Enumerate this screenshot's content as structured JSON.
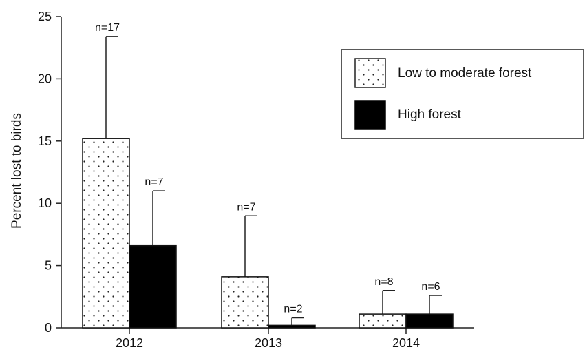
{
  "chart_data": {
    "type": "bar",
    "categories": [
      "2012",
      "2013",
      "2014"
    ],
    "series": [
      {
        "name": "Low to moderate forest",
        "values": [
          15.2,
          4.1,
          1.1
        ],
        "error_upper": [
          23.4,
          9.0,
          3.0
        ],
        "n_labels": [
          "n=17",
          "n=7",
          "n=8"
        ],
        "pattern": "dotted",
        "color": "#ffffff"
      },
      {
        "name": "High forest",
        "values": [
          6.6,
          0.2,
          1.1
        ],
        "error_upper": [
          11.0,
          0.8,
          2.6
        ],
        "n_labels": [
          "n=7",
          "n=2",
          "n=6"
        ],
        "pattern": "solid",
        "color": "#000000"
      }
    ],
    "title": "",
    "xlabel": "",
    "ylabel": "Percent lost to birds",
    "ylim": [
      0,
      25
    ],
    "yticks": [
      "0",
      "5",
      "10",
      "15",
      "20",
      "25"
    ],
    "grid": false,
    "legend_position": "top-right"
  }
}
